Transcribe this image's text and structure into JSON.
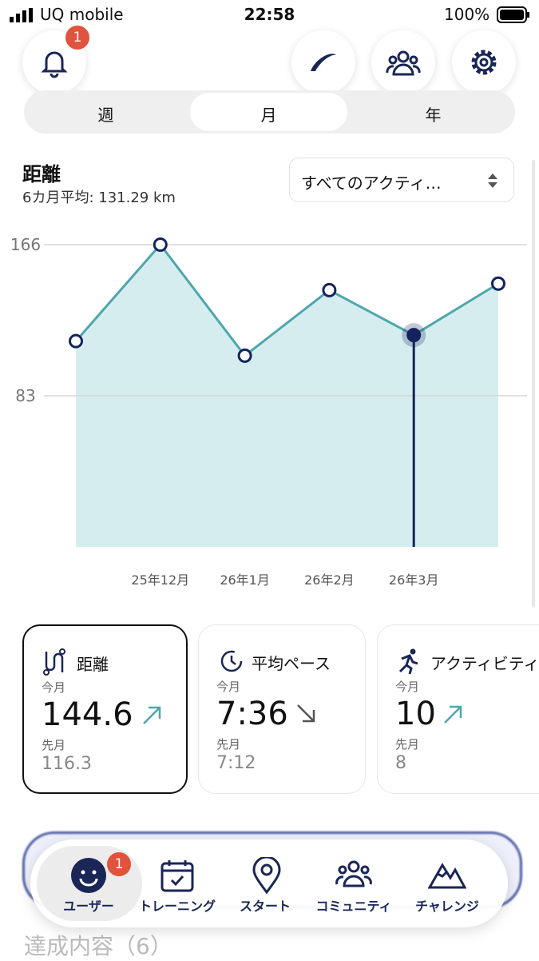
{
  "status_bar": {
    "carrier": "UQ mobile",
    "time": "22:58",
    "battery": "100%"
  },
  "header": {
    "notification_badge": "1"
  },
  "tabs": [
    "週",
    "月",
    "年"
  ],
  "metric": {
    "title": "距離",
    "subtitle": "6カ月平均: 131.29 km",
    "filter": "すべてのアクティ…"
  },
  "chart_data": {
    "type": "line",
    "categories": [
      null,
      "25年12月",
      "26年1月",
      "26年2月",
      "26年3月",
      null
    ],
    "values": [
      113,
      166,
      105,
      141,
      116.3,
      144.6
    ],
    "ylim": [
      0,
      166
    ],
    "yticks": [
      83,
      166
    ],
    "grid": true,
    "color": "#4fa6ae",
    "fill": "#d6edef",
    "marker_color": "#14235e",
    "selected": 4
  },
  "cards": [
    {
      "title": "距離",
      "current_label": "今月",
      "current": "144.6",
      "previous_label": "先月",
      "previous": "116.3"
    },
    {
      "title": "平均ペース",
      "current_label": "今月",
      "current": "7:36",
      "previous_label": "先月",
      "previous": "7:12"
    },
    {
      "title": "アクティビティ",
      "current_label": "今月",
      "current": "10",
      "previous_label": "先月",
      "previous": "8"
    }
  ],
  "nav": {
    "items": [
      "ユーザー",
      "トレーニング",
      "スタート",
      "コミュニティ",
      "チャレンジ"
    ],
    "badge": "1"
  },
  "achievements": "達成内容（6）"
}
